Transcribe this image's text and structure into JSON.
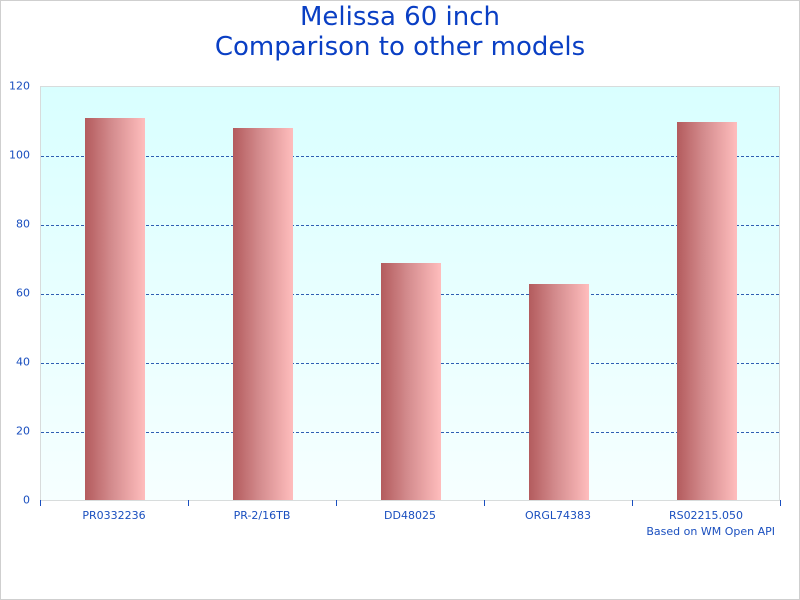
{
  "chart_data": {
    "type": "bar",
    "title": "Melissa 60 inch\nComparison to other models",
    "title_lines": [
      "Melissa 60 inch",
      "Comparison to other models"
    ],
    "categories": [
      "PR0332236",
      "PR-2/16TB",
      "DD48025",
      "ORGL74383",
      "RS02215.050"
    ],
    "values": [
      111,
      108,
      69,
      63,
      110
    ],
    "xlabel": "",
    "ylabel": "",
    "ylim": [
      0,
      120
    ],
    "yticks": [
      0,
      20,
      40,
      60,
      80,
      100,
      120
    ],
    "grid": true,
    "legend": null,
    "annotation": "Based on WM Open API"
  },
  "colors": {
    "title": "#0a3fc4",
    "axis_text": "#1a4fbf",
    "bar_dark": "#b35b5d",
    "bar_light": "#ffbdbd",
    "plot_bg_top": "#d9ffff",
    "plot_bg_bottom": "#f6ffff",
    "grid": "#2f5fb3"
  }
}
